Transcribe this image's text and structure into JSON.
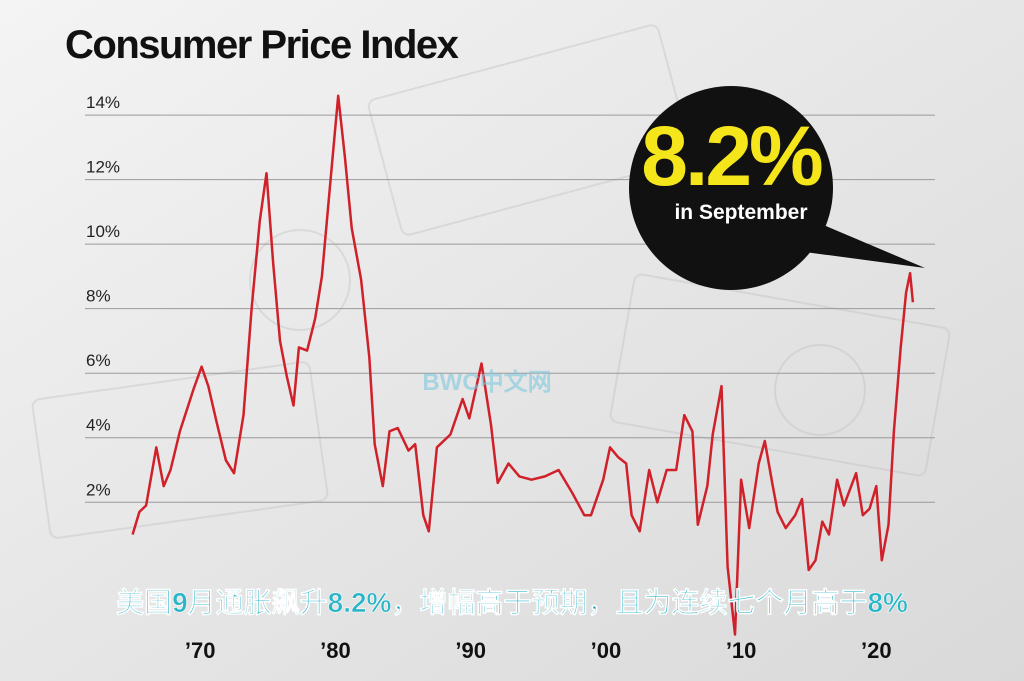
{
  "chart_data": {
    "type": "line",
    "title": "Consumer Price Index",
    "callout": {
      "headline": "8.2%",
      "text": "in September"
    },
    "caption": "美国9月通胀飙升8.2%，增幅高于预期，且为连续七个月高于8%",
    "watermark": "BWC中文网",
    "color": "#d0202a",
    "grid": true,
    "x": [
      1965.0,
      1965.5,
      1966.0,
      1966.75,
      1967.3,
      1967.8,
      1968.5,
      1969.5,
      1970.1,
      1970.6,
      1971.2,
      1971.9,
      1972.5,
      1973.2,
      1973.8,
      1974.4,
      1974.9,
      1975.4,
      1975.9,
      1976.4,
      1976.9,
      1977.3,
      1977.9,
      1978.5,
      1979.0,
      1979.6,
      1980.2,
      1980.7,
      1981.2,
      1981.9,
      1982.5,
      1982.9,
      1983.5,
      1984.0,
      1984.6,
      1985.4,
      1985.9,
      1986.5,
      1986.9,
      1987.5,
      1988.5,
      1989.4,
      1989.9,
      1990.8,
      1991.5,
      1992.0,
      1992.8,
      1993.6,
      1994.5,
      1995.5,
      1996.5,
      1997.5,
      1998.4,
      1998.9,
      1999.8,
      2000.3,
      2000.9,
      2001.5,
      2001.9,
      2002.5,
      2003.2,
      2003.8,
      2004.5,
      2005.2,
      2005.8,
      2006.4,
      2006.8,
      2007.5,
      2007.9,
      2008.55,
      2009.0,
      2009.55,
      2010.0,
      2010.6,
      2011.3,
      2011.75,
      2012.3,
      2012.7,
      2013.3,
      2014.0,
      2014.5,
      2015.0,
      2015.5,
      2016.0,
      2016.5,
      2017.1,
      2017.6,
      2018.5,
      2019.0,
      2019.5,
      2020.0,
      2020.4,
      2020.9,
      2021.3,
      2021.8,
      2022.2,
      2022.5,
      2022.7
    ],
    "values": [
      1.0,
      1.7,
      1.9,
      3.7,
      2.5,
      3.0,
      4.2,
      5.5,
      6.2,
      5.6,
      4.5,
      3.3,
      2.9,
      4.7,
      8.0,
      10.7,
      12.2,
      9.4,
      7.0,
      5.9,
      5.0,
      6.8,
      6.7,
      7.7,
      9.0,
      11.8,
      14.6,
      12.7,
      10.5,
      8.9,
      6.5,
      3.8,
      2.5,
      4.2,
      4.3,
      3.6,
      3.8,
      1.6,
      1.1,
      3.7,
      4.1,
      5.2,
      4.6,
      6.3,
      4.4,
      2.6,
      3.2,
      2.8,
      2.7,
      2.8,
      3.0,
      2.3,
      1.6,
      1.6,
      2.7,
      3.7,
      3.4,
      3.2,
      1.6,
      1.1,
      3.0,
      2.0,
      3.0,
      3.0,
      4.7,
      4.2,
      1.3,
      2.5,
      4.1,
      5.6,
      0.0,
      -2.1,
      2.7,
      1.2,
      3.2,
      3.9,
      2.6,
      1.7,
      1.2,
      1.6,
      2.1,
      -0.1,
      0.2,
      1.4,
      1.0,
      2.7,
      1.9,
      2.9,
      1.6,
      1.8,
      2.5,
      0.2,
      1.3,
      4.2,
      6.8,
      8.5,
      9.1,
      8.2
    ],
    "xlim": [
      1960,
      2027
    ],
    "xticks": [
      {
        "value": 1970,
        "label": "’70"
      },
      {
        "value": 1980,
        "label": "’80"
      },
      {
        "value": 1990,
        "label": "’90"
      },
      {
        "value": 2000,
        "label": "’00"
      },
      {
        "value": 2010,
        "label": "’10"
      },
      {
        "value": 2020,
        "label": "’20"
      }
    ],
    "ylim": [
      -2.3,
      15.8
    ],
    "yticks": [
      {
        "value": 2,
        "label": "2%"
      },
      {
        "value": 4,
        "label": "4%"
      },
      {
        "value": 6,
        "label": "6%"
      },
      {
        "value": 8,
        "label": "8%"
      },
      {
        "value": 10,
        "label": "10%"
      },
      {
        "value": 12,
        "label": "12%"
      },
      {
        "value": 14,
        "label": "14%"
      }
    ]
  }
}
